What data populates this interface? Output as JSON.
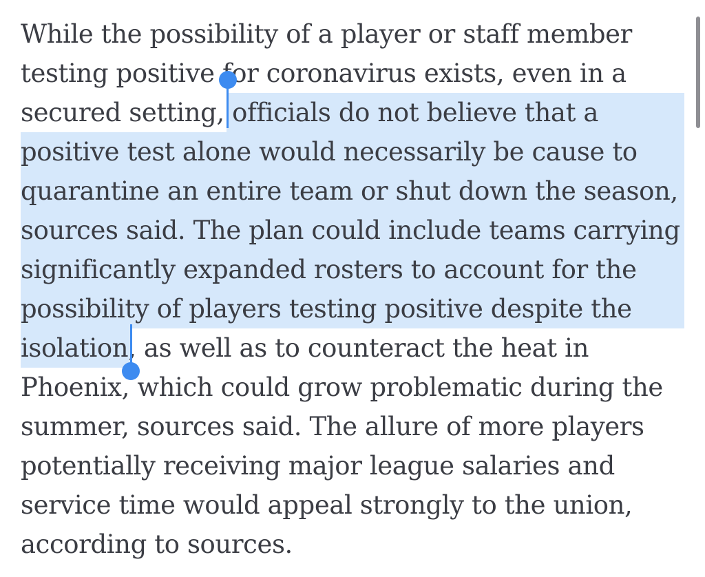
{
  "article": {
    "lines": [
      "While the possibility of a player or staff member",
      "testing positive for coronavirus exists, even in a",
      "secured setting, ",
      "officials do not believe that a",
      "positive test alone would necessarily be cause to",
      "quarantine an entire team or shut down the season,",
      "sources said. The plan could include teams carrying",
      "significantly expanded rosters to account for the",
      "possibility of players testing positive despite the",
      "isolation",
      ", as well as to counteract the heat in",
      "Phoenix, which could grow problematic during the",
      "summer, sources said. The allure of more players",
      "potentially receiving major league salaries and",
      "service time would appeal strongly to the union,",
      "according to sources."
    ]
  },
  "selection": {
    "highlight_color": "#d6e8fb",
    "handle_color": "#3d8bf0"
  },
  "text_color": "#3b3d44"
}
